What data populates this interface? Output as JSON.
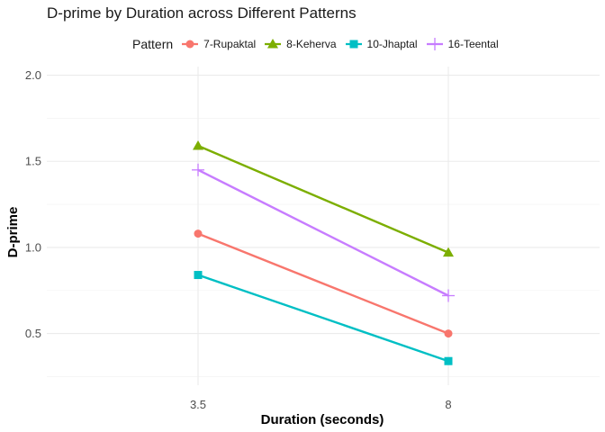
{
  "chart_data": {
    "type": "line",
    "title": "D-prime by Duration across Different Patterns",
    "xlabel": "Duration (seconds)",
    "ylabel": "D-prime",
    "categories": [
      "3.5",
      "8"
    ],
    "y_ticks": [
      "0.5",
      "1.0",
      "1.5",
      "2.0"
    ],
    "ylim": [
      0.2,
      2.05
    ],
    "grid": true,
    "legend": {
      "title": "Pattern",
      "position": "top"
    },
    "series": [
      {
        "name": "7-Rupaktal",
        "values": [
          1.08,
          0.5
        ],
        "color": "#F8766D",
        "marker": "circle"
      },
      {
        "name": "8-Keherva",
        "values": [
          1.59,
          0.97
        ],
        "color": "#7CAE00",
        "marker": "triangle"
      },
      {
        "name": "10-Jhaptal",
        "values": [
          0.84,
          0.34
        ],
        "color": "#00BFC4",
        "marker": "square"
      },
      {
        "name": "16-Teental",
        "values": [
          1.45,
          0.72
        ],
        "color": "#C77CFF",
        "marker": "plus"
      }
    ]
  }
}
